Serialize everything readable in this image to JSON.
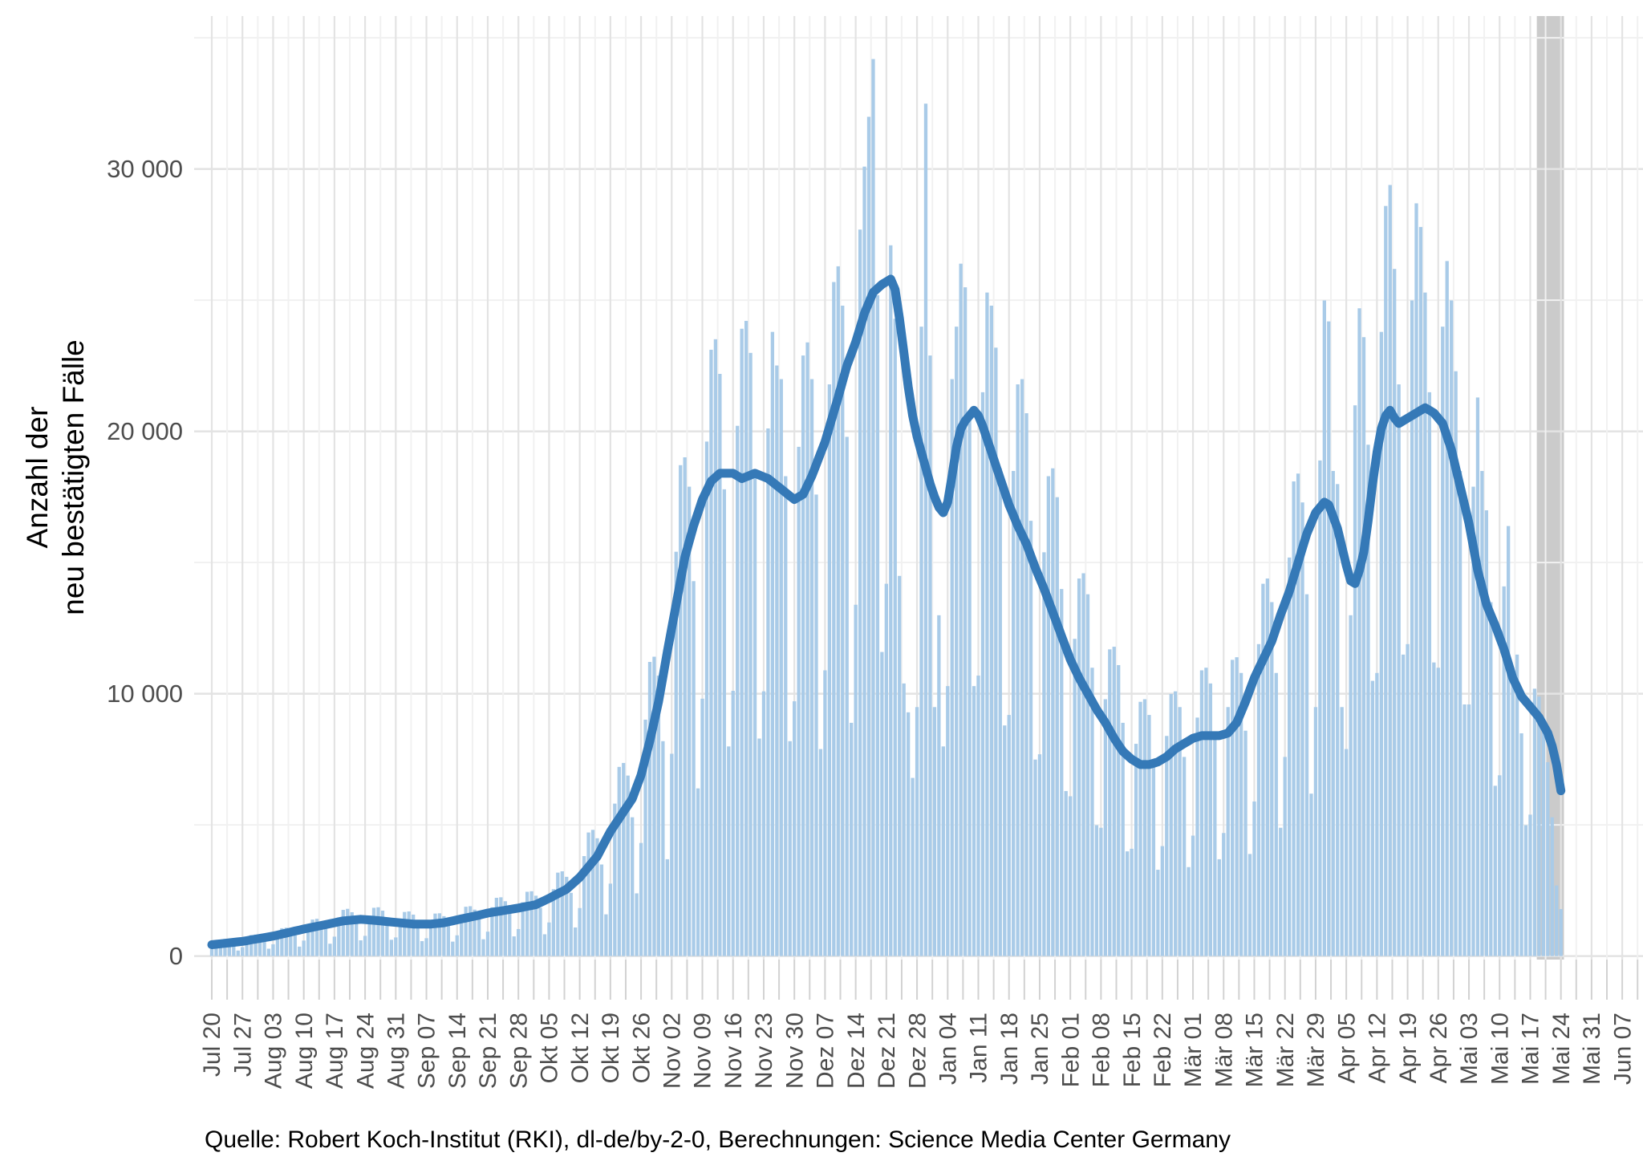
{
  "figure": {
    "y_axis_title_line1": "Anzahl der",
    "y_axis_title_line2": "neu bestätigten Fälle",
    "caption": "Quelle: Robert Koch-Institut (RKI), dl-de/by-2-0, Berechnungen: Science Media Center Germany"
  },
  "chart_data": {
    "type": "bar",
    "title": "",
    "xlabel": "",
    "ylabel": "Anzahl der neu bestätigten Fälle",
    "ylim": [
      0,
      35800
    ],
    "grid": "major and minor, light gray, horizontal and vertical (weekly + half-weekly)",
    "legend_position": "none",
    "y_ticks": [
      {
        "value": 0,
        "label": "0"
      },
      {
        "value": 10000,
        "label": "10 000"
      },
      {
        "value": 20000,
        "label": "20 000"
      },
      {
        "value": 30000,
        "label": "30 000"
      }
    ],
    "y_minor_ticks": [
      5000,
      15000,
      25000,
      35000
    ],
    "x_tick_interval_days": 7,
    "x_tick_labels": [
      "Jul 20",
      "Jul 27",
      "Aug 03",
      "Aug 10",
      "Aug 17",
      "Aug 24",
      "Aug 31",
      "Sep 07",
      "Sep 14",
      "Sep 21",
      "Sep 28",
      "Okt 05",
      "Okt 12",
      "Okt 19",
      "Okt 26",
      "Nov 02",
      "Nov 09",
      "Nov 16",
      "Nov 23",
      "Nov 30",
      "Dez 07",
      "Dez 14",
      "Dez 21",
      "Dez 28",
      "Jan 04",
      "Jan 11",
      "Jan 18",
      "Jan 25",
      "Feb 01",
      "Feb 08",
      "Feb 15",
      "Feb 22",
      "Mär 01",
      "Mär 08",
      "Mär 15",
      "Mär 22",
      "Mär 29",
      "Apr 05",
      "Apr 12",
      "Apr 19",
      "Apr 26",
      "Mai 03",
      "Mai 10",
      "Mai 17",
      "Mai 24",
      "Mai 31",
      "Jun 07"
    ],
    "bars": {
      "first_day_label": "Jul 20",
      "step_days": 1,
      "values": [
        260,
        530,
        620,
        650,
        590,
        460,
        210,
        340,
        680,
        800,
        820,
        770,
        610,
        280,
        450,
        890,
        1060,
        1080,
        1000,
        790,
        360,
        590,
        1170,
        1390,
        1420,
        1310,
        1040,
        470,
        740,
        1470,
        1760,
        1800,
        1670,
        1320,
        600,
        770,
        1540,
        1840,
        1860,
        1730,
        1380,
        620,
        710,
        1410,
        1680,
        1700,
        1580,
        1260,
        570,
        680,
        1350,
        1620,
        1630,
        1520,
        1210,
        550,
        790,
        1570,
        1880,
        1900,
        1770,
        1410,
        640,
        930,
        1860,
        2220,
        2240,
        2090,
        1670,
        750,
        1030,
        2050,
        2450,
        2470,
        2300,
        1840,
        830,
        1280,
        2550,
        3180,
        3230,
        3020,
        2410,
        1090,
        1830,
        3810,
        4710,
        4810,
        4490,
        3490,
        1590,
        2760,
        5810,
        7210,
        7360,
        6880,
        5290,
        2390,
        4310,
        9010,
        11210,
        11410,
        10690,
        8190,
        3690,
        7710,
        15410,
        18710,
        19010,
        17890,
        14290,
        6390,
        9810,
        19610,
        23110,
        23510,
        22190,
        17790,
        7990,
        10110,
        20210,
        23910,
        24210,
        22990,
        18390,
        8290,
        10090,
        20110,
        23790,
        22510,
        21990,
        18290,
        8190,
        9710,
        19410,
        22890,
        23390,
        21990,
        17590,
        7890,
        10890,
        21790,
        25690,
        26290,
        24790,
        19790,
        8890,
        13390,
        27690,
        30090,
        31990,
        34190,
        25190,
        11590,
        14190,
        27090,
        24290,
        14490,
        10390,
        9290,
        6790,
        9490,
        23990,
        32490,
        22890,
        9490,
        12990,
        7990,
        10290,
        21990,
        23990,
        26390,
        25490,
        20490,
        10290,
        10690,
        21490,
        25290,
        24790,
        23190,
        18590,
        8790,
        9190,
        18490,
        21790,
        21990,
        20690,
        16590,
        7490,
        7690,
        15390,
        18290,
        18590,
        17490,
        13990,
        6290,
        6090,
        12090,
        14390,
        14590,
        13790,
        10990,
        4990,
        4890,
        9790,
        11690,
        11790,
        11090,
        8890,
        3990,
        4090,
        8090,
        9690,
        9790,
        9190,
        7390,
        3290,
        4190,
        8390,
        9990,
        10090,
        9490,
        7590,
        3390,
        4590,
        9090,
        10890,
        10990,
        10390,
        8290,
        3690,
        4690,
        9490,
        11290,
        11390,
        10790,
        8590,
        3890,
        5890,
        11890,
        14190,
        14390,
        13490,
        10790,
        4890,
        7590,
        15190,
        18090,
        18390,
        17290,
        13790,
        6190,
        9490,
        18890,
        24990,
        24190,
        18490,
        17990,
        9490,
        7890,
        12990,
        20990,
        24690,
        23590,
        19490,
        10490,
        10790,
        23790,
        28590,
        29390,
        26190,
        21790,
        11490,
        11890,
        24990,
        28690,
        27790,
        25290,
        21490,
        11190,
        10990,
        23990,
        26490,
        24990,
        22290,
        18490,
        9590,
        9590,
        17890,
        21290,
        18490,
        16990,
        13490,
        6490,
        6890,
        14090,
        16390,
        10990,
        11490,
        8490,
        4990,
        5390,
        10190,
        9890,
        8790,
        7390,
        5290,
        2690,
        1790
      ]
    },
    "line": {
      "description": "7-day moving average, drawn as thick blue line",
      "anchors": [
        [
          0,
          430
        ],
        [
          7,
          560
        ],
        [
          14,
          760
        ],
        [
          21,
          1030
        ],
        [
          26,
          1200
        ],
        [
          30,
          1340
        ],
        [
          34,
          1400
        ],
        [
          38,
          1350
        ],
        [
          42,
          1280
        ],
        [
          46,
          1220
        ],
        [
          50,
          1220
        ],
        [
          53,
          1270
        ],
        [
          56,
          1380
        ],
        [
          60,
          1520
        ],
        [
          63,
          1640
        ],
        [
          66,
          1720
        ],
        [
          70,
          1830
        ],
        [
          74,
          1960
        ],
        [
          77,
          2200
        ],
        [
          81,
          2550
        ],
        [
          84,
          3000
        ],
        [
          88,
          3800
        ],
        [
          91,
          4750
        ],
        [
          94,
          5500
        ],
        [
          96,
          6000
        ],
        [
          98,
          6900
        ],
        [
          100,
          8200
        ],
        [
          102,
          9700
        ],
        [
          104,
          11600
        ],
        [
          106,
          13400
        ],
        [
          108,
          15200
        ],
        [
          110,
          16400
        ],
        [
          112,
          17400
        ],
        [
          114,
          18100
        ],
        [
          116,
          18400
        ],
        [
          119,
          18400
        ],
        [
          121,
          18200
        ],
        [
          124,
          18400
        ],
        [
          127,
          18200
        ],
        [
          130,
          17800
        ],
        [
          133,
          17400
        ],
        [
          135,
          17600
        ],
        [
          137,
          18300
        ],
        [
          140,
          19600
        ],
        [
          143,
          21300
        ],
        [
          145,
          22500
        ],
        [
          147,
          23400
        ],
        [
          149,
          24500
        ],
        [
          151,
          25300
        ],
        [
          153,
          25600
        ],
        [
          155,
          25800
        ],
        [
          156,
          25400
        ],
        [
          157,
          24300
        ],
        [
          158,
          23000
        ],
        [
          159,
          21700
        ],
        [
          160,
          20600
        ],
        [
          161,
          19800
        ],
        [
          162,
          19200
        ],
        [
          163,
          18600
        ],
        [
          164,
          18000
        ],
        [
          165,
          17500
        ],
        [
          166,
          17100
        ],
        [
          167,
          16900
        ],
        [
          168,
          17300
        ],
        [
          169,
          18300
        ],
        [
          170,
          19400
        ],
        [
          171,
          20100
        ],
        [
          172,
          20400
        ],
        [
          174,
          20800
        ],
        [
          175,
          20600
        ],
        [
          176,
          20200
        ],
        [
          177,
          19700
        ],
        [
          178,
          19200
        ],
        [
          180,
          18200
        ],
        [
          182,
          17200
        ],
        [
          184,
          16400
        ],
        [
          186,
          15700
        ],
        [
          188,
          14800
        ],
        [
          190,
          14000
        ],
        [
          192,
          13100
        ],
        [
          194,
          12200
        ],
        [
          196,
          11300
        ],
        [
          198,
          10600
        ],
        [
          200,
          10000
        ],
        [
          202,
          9400
        ],
        [
          204,
          8900
        ],
        [
          206,
          8300
        ],
        [
          208,
          7800
        ],
        [
          210,
          7500
        ],
        [
          212,
          7300
        ],
        [
          214,
          7300
        ],
        [
          216,
          7400
        ],
        [
          218,
          7600
        ],
        [
          220,
          7900
        ],
        [
          222,
          8100
        ],
        [
          224,
          8300
        ],
        [
          226,
          8400
        ],
        [
          230,
          8400
        ],
        [
          232,
          8500
        ],
        [
          234,
          8900
        ],
        [
          236,
          9700
        ],
        [
          238,
          10600
        ],
        [
          240,
          11300
        ],
        [
          242,
          12000
        ],
        [
          244,
          13000
        ],
        [
          246,
          13900
        ],
        [
          248,
          15000
        ],
        [
          250,
          16100
        ],
        [
          252,
          16900
        ],
        [
          254,
          17300
        ],
        [
          255,
          17200
        ],
        [
          257,
          16300
        ],
        [
          259,
          14900
        ],
        [
          260,
          14300
        ],
        [
          261,
          14200
        ],
        [
          262,
          14700
        ],
        [
          263,
          15400
        ],
        [
          264,
          16600
        ],
        [
          265,
          18000
        ],
        [
          266,
          19200
        ],
        [
          267,
          20100
        ],
        [
          268,
          20600
        ],
        [
          269,
          20800
        ],
        [
          270,
          20500
        ],
        [
          271,
          20300
        ],
        [
          272,
          20400
        ],
        [
          273,
          20500
        ],
        [
          275,
          20700
        ],
        [
          277,
          20900
        ],
        [
          279,
          20700
        ],
        [
          281,
          20300
        ],
        [
          283,
          19300
        ],
        [
          285,
          17900
        ],
        [
          287,
          16500
        ],
        [
          289,
          14700
        ],
        [
          291,
          13400
        ],
        [
          293,
          12600
        ],
        [
          295,
          11700
        ],
        [
          297,
          10600
        ],
        [
          299,
          9900
        ],
        [
          301,
          9500
        ],
        [
          303,
          9100
        ],
        [
          305,
          8500
        ],
        [
          306,
          8000
        ],
        [
          307,
          7300
        ],
        [
          308,
          6300
        ]
      ]
    },
    "highlight_band": {
      "from_day": 302.5,
      "to_day": 308.7
    },
    "colors": {
      "bar": "#a9cbe8",
      "line": "#3579b7",
      "band": "#cbcbcb",
      "grid_major": "#e3e3e3",
      "grid_minor": "#f1f1f1",
      "tick_mark": "#d2d2d2",
      "axis_text": "#4d4d4d",
      "text": "#000000",
      "background": "#ffffff"
    }
  }
}
